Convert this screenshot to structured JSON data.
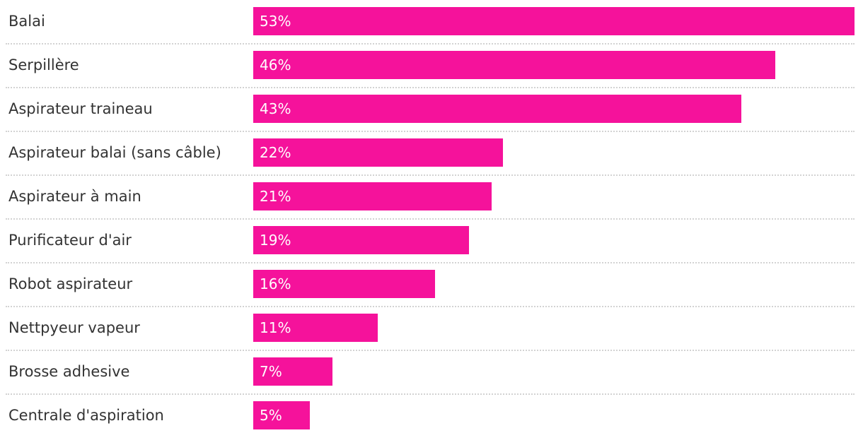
{
  "chart_data": {
    "type": "bar",
    "orientation": "horizontal",
    "title": "",
    "xlabel": "",
    "ylabel": "",
    "xlim": [
      0,
      53
    ],
    "grid": false,
    "legend": "none",
    "bar_color": "#f5129b",
    "label_color": "#333333",
    "value_color": "#ffffff",
    "divider_color": "#d3d3d3",
    "categories": [
      "Balai",
      "Serpillère",
      "Aspirateur traineau",
      "Aspirateur balai (sans câble)",
      "Aspirateur à main",
      "Purificateur d'air",
      "Robot aspirateur",
      "Nettpyeur vapeur",
      "Brosse adhesive",
      "Centrale d'aspiration"
    ],
    "values": [
      53,
      46,
      43,
      22,
      21,
      19,
      16,
      11,
      7,
      5
    ],
    "value_labels": [
      "53%",
      "46%",
      "43%",
      "22%",
      "21%",
      "19%",
      "16%",
      "11%",
      "7%",
      "5%"
    ]
  }
}
